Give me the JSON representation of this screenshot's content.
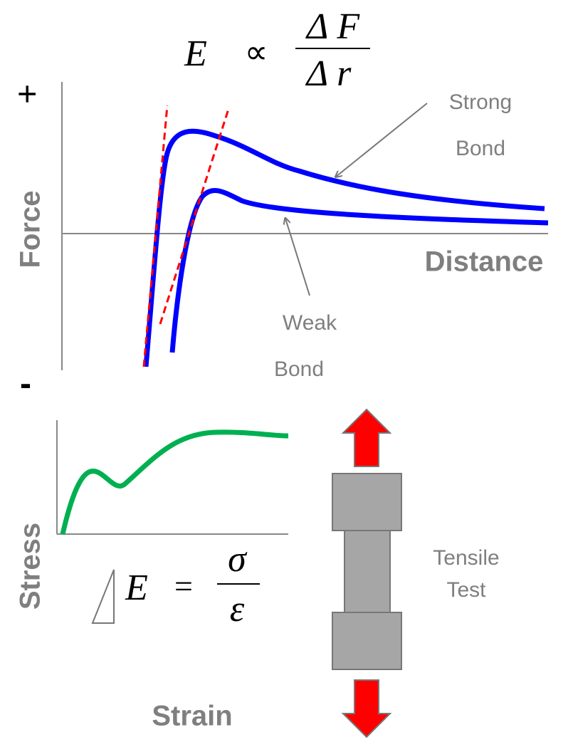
{
  "force_diagram": {
    "formula": {
      "lhs": "E",
      "relation": "∝",
      "numerator": "Δ F",
      "denominator": "Δ r"
    },
    "y_plus": "+",
    "y_minus": "-",
    "y_axis_label": "Force",
    "x_axis_label": "Distance",
    "strong_label": [
      "Strong",
      "Bond"
    ],
    "weak_label": [
      "Weak",
      "Bond"
    ]
  },
  "stress_diagram": {
    "formula": {
      "lhs": "E",
      "relation": "=",
      "numerator": "σ",
      "denominator": "ε"
    },
    "y_axis_label": "Stress",
    "x_axis_label": "Strain",
    "test_label": [
      "Tensile",
      "Test"
    ]
  }
}
